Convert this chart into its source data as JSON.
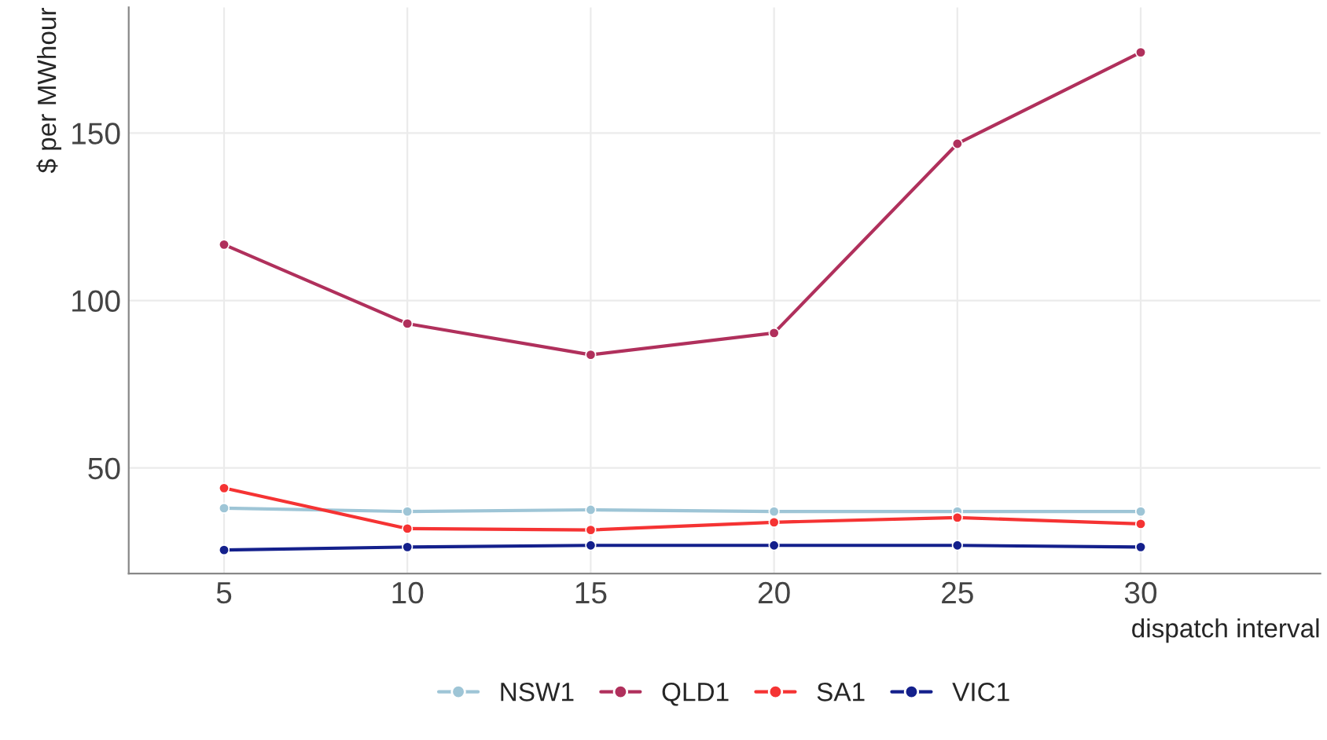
{
  "chart_data": {
    "type": "line",
    "xlabel": "dispatch interval",
    "ylabel": "$ per MWhour",
    "x": [
      5,
      10,
      15,
      20,
      25,
      30
    ],
    "series": [
      {
        "name": "NSW1",
        "color": "#9ec5d6",
        "values": [
          38,
          37,
          37.5,
          37,
          37,
          37
        ]
      },
      {
        "name": "QLD1",
        "color": "#b0305c",
        "values": [
          116.7,
          93.1,
          83.8,
          90.3,
          146.8,
          174.1
        ]
      },
      {
        "name": "SA1",
        "color": "#f53333",
        "values": [
          44,
          31.9,
          31.5,
          33.8,
          35.2,
          33.3
        ]
      },
      {
        "name": "VIC1",
        "color": "#14208c",
        "values": [
          25.5,
          26.4,
          26.9,
          26.9,
          26.9,
          26.4
        ]
      }
    ],
    "xlim": [
      2.4,
      34.9
    ],
    "ylim": [
      18.5,
      187.5
    ],
    "xticks": [
      5,
      10,
      15,
      20,
      25,
      30
    ],
    "yticks": [
      50,
      100,
      150
    ],
    "grid": true,
    "legend": "bottom",
    "marker": "circle",
    "line_style": "solid"
  }
}
